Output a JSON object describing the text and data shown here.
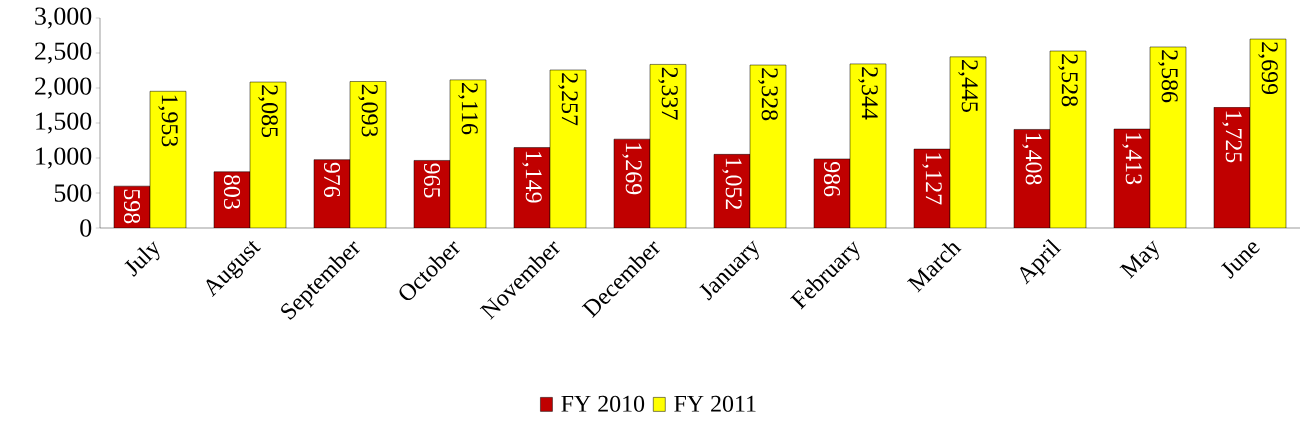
{
  "chart_data": {
    "type": "bar",
    "categories": [
      "July",
      "August",
      "September",
      "October",
      "November",
      "December",
      "January",
      "February",
      "March",
      "April",
      "May",
      "June"
    ],
    "series": [
      {
        "name": "FY 2010",
        "color": "#c00000",
        "values": [
          598,
          803,
          976,
          965,
          1149,
          1269,
          1052,
          986,
          1127,
          1408,
          1413,
          1725
        ],
        "value_labels": [
          "598",
          "803",
          "976",
          "965",
          "1,149",
          "1,269",
          "1,052",
          "986",
          "1,127",
          "1,408",
          "1,413",
          "1,725"
        ]
      },
      {
        "name": "FY 2011",
        "color": "#ffff00",
        "values": [
          1953,
          2085,
          2093,
          2116,
          2257,
          2337,
          2328,
          2344,
          2445,
          2528,
          2586,
          2699
        ],
        "value_labels": [
          "1,953",
          "2,085",
          "2,093",
          "2,116",
          "2,257",
          "2,337",
          "2,328",
          "2,344",
          "2,445",
          "2,528",
          "2,586",
          "2,699"
        ]
      }
    ],
    "ylim": [
      0,
      3000
    ],
    "yticks": [
      0,
      500,
      {
        "value": 1000,
        "label": "1,000"
      },
      {
        "value": 1500,
        "label": "1,500"
      },
      {
        "value": 2000,
        "label": "2,000"
      },
      {
        "value": 2500,
        "label": "2,500"
      },
      {
        "value": 3000,
        "label": "3,000"
      }
    ],
    "legend": "bottom",
    "grid": false
  }
}
